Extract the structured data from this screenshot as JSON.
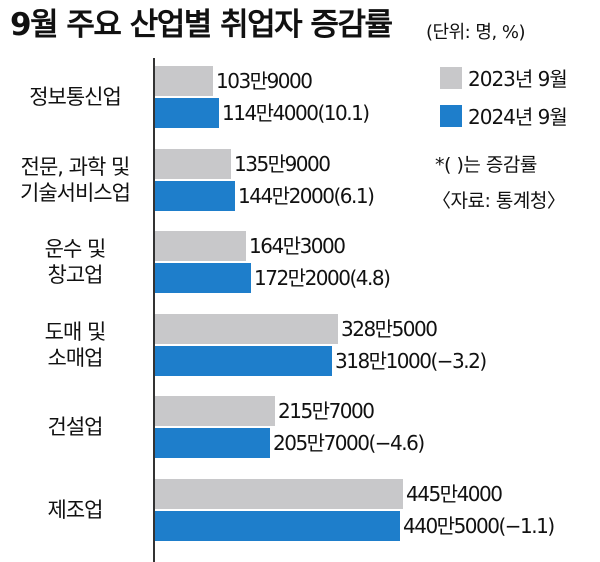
{
  "header": {
    "title": "9월 주요 산업별 취업자 증감률",
    "unit": "(단위: 명, %)"
  },
  "legend": {
    "items": [
      {
        "label": "2023년 9월",
        "color": "#c8c8ca"
      },
      {
        "label": "2024년 9월",
        "color": "#1e7ecb"
      }
    ]
  },
  "notes": {
    "change_note": "*(  )는 증감률",
    "source": "〈자료: 통계청〉"
  },
  "chart_data": {
    "type": "bar",
    "orientation": "horizontal",
    "categories": [
      [
        "정보통신업"
      ],
      [
        "전문, 과학 및",
        "기술서비스업"
      ],
      [
        "운수 및",
        "창고업"
      ],
      [
        "도매 및",
        "소매업"
      ],
      [
        "건설업"
      ],
      [
        "제조업"
      ]
    ],
    "series": [
      {
        "name": "2023년 9월",
        "color": "#c8c8ca",
        "values": [
          1039000,
          1359000,
          1643000,
          3285000,
          2157000,
          4454000
        ],
        "labels": [
          "103만9000",
          "135만9000",
          "164만3000",
          "328만5000",
          "215만7000",
          "445만4000"
        ]
      },
      {
        "name": "2024년 9월",
        "color": "#1e7ecb",
        "values": [
          1144000,
          1442000,
          1722000,
          3181000,
          2057000,
          4405000
        ],
        "labels": [
          "114만4000(10.1)",
          "144만2000(6.1)",
          "172만2000(4.8)",
          "318만1000(−3.2)",
          "205만7000(−4.6)",
          "440만5000(−1.1)"
        ],
        "change_pct": [
          10.1,
          6.1,
          4.8,
          -3.2,
          -4.6,
          -1.1
        ]
      }
    ],
    "xlim": [
      0,
      4454000
    ],
    "grid": false,
    "legend_position": "top-right"
  }
}
